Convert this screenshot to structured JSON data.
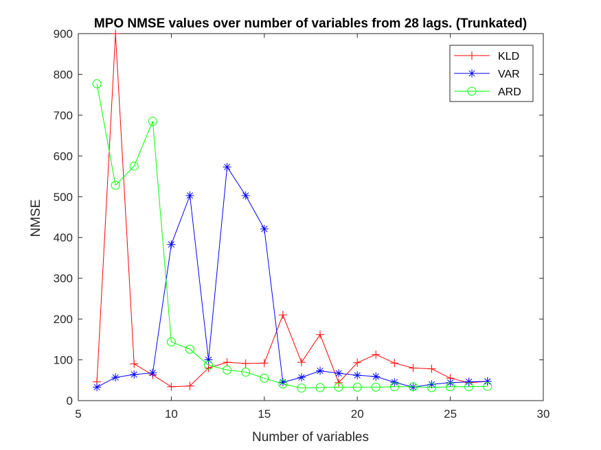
{
  "chart_data": {
    "type": "line",
    "title": "MPO NMSE values over number of variables from 28 lags. (Trunkated)",
    "xlabel": "Number of variables",
    "ylabel": "NMSE",
    "xlim": [
      5,
      30
    ],
    "ylim": [
      0,
      900
    ],
    "xticks": [
      5,
      10,
      15,
      20,
      25,
      30
    ],
    "yticks": [
      0,
      100,
      200,
      300,
      400,
      500,
      600,
      700,
      800,
      900
    ],
    "grid": false,
    "legend_position": "top-right",
    "x": [
      6,
      7,
      8,
      9,
      10,
      11,
      12,
      13,
      14,
      15,
      16,
      17,
      18,
      19,
      20,
      21,
      22,
      23,
      24,
      25,
      26,
      27
    ],
    "series": [
      {
        "name": "KLD",
        "color": "#ff0000",
        "marker": "plus",
        "values": [
          46,
          900,
          90,
          63,
          34,
          36,
          80,
          94,
          91,
          92,
          210,
          94,
          162,
          44,
          93,
          113,
          92,
          80,
          78,
          55,
          44,
          47
        ]
      },
      {
        "name": "VAR",
        "color": "#0000ff",
        "marker": "asterisk",
        "values": [
          33,
          57,
          64,
          68,
          383,
          503,
          100,
          573,
          503,
          421,
          45,
          57,
          73,
          67,
          62,
          59,
          45,
          33,
          40,
          44,
          46,
          47
        ]
      },
      {
        "name": "ARD",
        "color": "#00ff00",
        "marker": "circle",
        "values": [
          777,
          528,
          575,
          685,
          144,
          126,
          87,
          75,
          70,
          55,
          41,
          31,
          32,
          33,
          33,
          33,
          34,
          34,
          32,
          34,
          34,
          35
        ]
      }
    ]
  }
}
